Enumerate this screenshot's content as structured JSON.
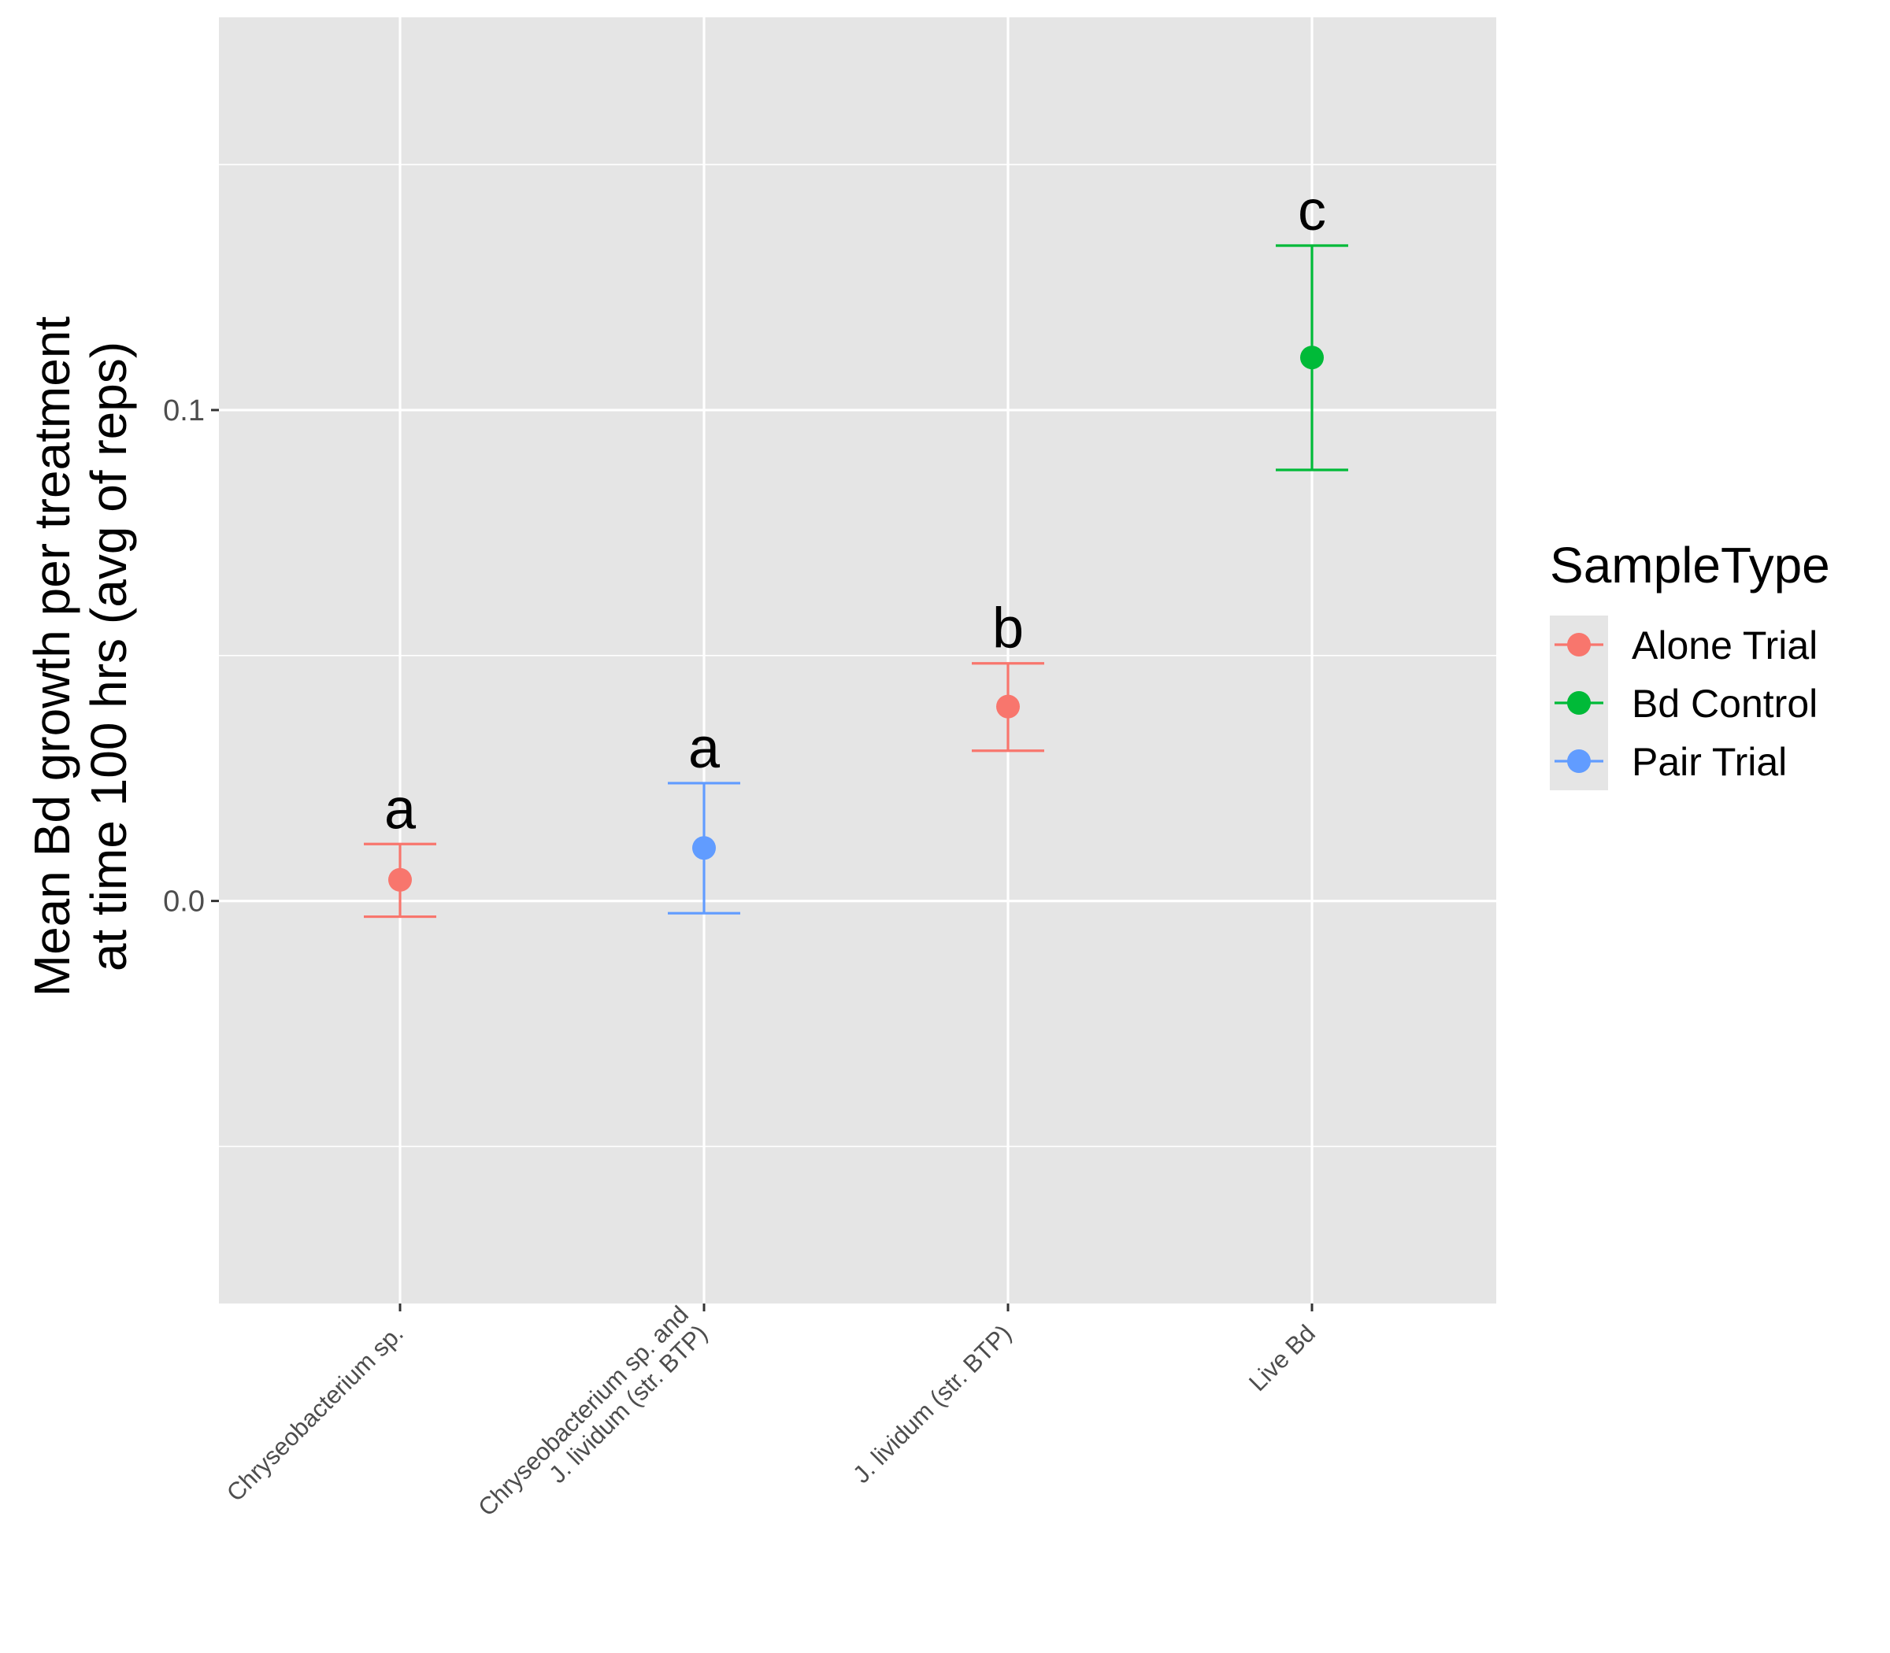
{
  "chart_data": {
    "type": "scatter",
    "title": "",
    "xlabel": "",
    "ylabel_lines": [
      "Mean Bd growth per treatment",
      "at time 100 hrs (avg of reps)"
    ],
    "ylim": [
      -0.082,
      0.18
    ],
    "yticks": [
      0.0,
      0.1
    ],
    "ytick_labels": [
      "0.0",
      "0.1"
    ],
    "minor_gridlines": [
      -0.05,
      0.05,
      0.15
    ],
    "grid": true,
    "categories": [
      {
        "lines": [
          "Chryseobacterium sp."
        ]
      },
      {
        "lines": [
          "Chryseobacterium sp. and",
          "J. lividum (str. BTP)"
        ]
      },
      {
        "lines": [
          "J. lividum (str. BTP)"
        ]
      },
      {
        "lines": [
          "Live Bd"
        ]
      }
    ],
    "points": [
      {
        "category": 0,
        "group": "Alone Trial",
        "mean": 0.0043,
        "lower": -0.0032,
        "upper": 0.0116,
        "letter": "a"
      },
      {
        "category": 1,
        "group": "Pair Trial",
        "mean": 0.0108,
        "lower": -0.0025,
        "upper": 0.024,
        "letter": "a"
      },
      {
        "category": 2,
        "group": "Alone Trial",
        "mean": 0.0396,
        "lower": 0.0306,
        "upper": 0.0484,
        "letter": "b"
      },
      {
        "category": 3,
        "group": "Bd Control",
        "mean": 0.1107,
        "lower": 0.0878,
        "upper": 0.1335,
        "letter": "c"
      }
    ],
    "legend": {
      "title": "SampleType",
      "position": "right",
      "items": [
        {
          "label": "Alone Trial",
          "color": "#F8766D"
        },
        {
          "label": "Bd Control",
          "color": "#00BA38"
        },
        {
          "label": "Pair Trial",
          "color": "#619CFF"
        }
      ]
    },
    "colors": {
      "panel": "#E5E5E5",
      "grid": "#FFFFFF"
    }
  }
}
